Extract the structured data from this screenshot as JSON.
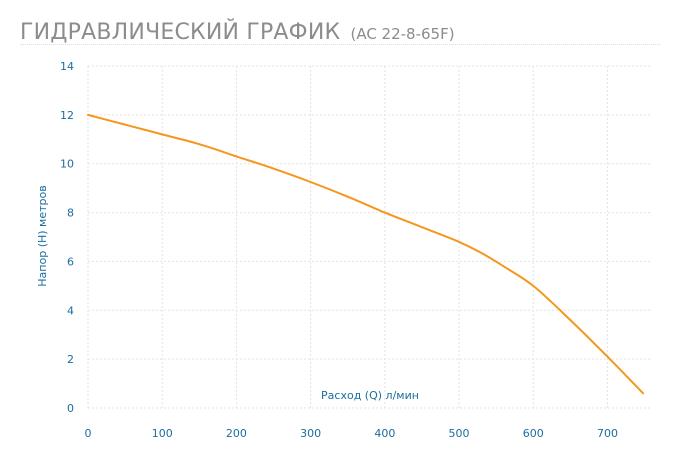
{
  "header": {
    "title": "ГИДРАВЛИЧЕСКИЙ ГРАФИК",
    "model": "(AC 22-8-65F)"
  },
  "colors": {
    "curve": "#f5961e",
    "axis_text": "#1a6e9e",
    "grid": "#e3e3e3",
    "title": "#8c8c8c"
  },
  "chart_data": {
    "type": "line",
    "title": "ГИДРАВЛИЧЕСКИЙ ГРАФИК (AC 22-8-65F)",
    "xlabel": "Расход (Q) л/мин",
    "ylabel": "Напор (H) метров",
    "xlim": [
      0,
      760
    ],
    "ylim": [
      0,
      14
    ],
    "xticks": [
      0,
      100,
      200,
      300,
      400,
      500,
      600,
      700
    ],
    "yticks": [
      0,
      2,
      4,
      6,
      8,
      10,
      12,
      14
    ],
    "grid": true,
    "series": [
      {
        "values": [
          [
            0,
            12.0
          ],
          [
            50,
            11.6
          ],
          [
            100,
            11.2
          ],
          [
            150,
            10.8
          ],
          [
            200,
            10.3
          ],
          [
            250,
            9.8
          ],
          [
            300,
            9.25
          ],
          [
            350,
            8.65
          ],
          [
            400,
            8.0
          ],
          [
            450,
            7.4
          ],
          [
            500,
            6.8
          ],
          [
            530,
            6.35
          ],
          [
            560,
            5.8
          ],
          [
            600,
            5.0
          ],
          [
            650,
            3.6
          ],
          [
            700,
            2.1
          ],
          [
            748,
            0.6
          ]
        ]
      }
    ]
  }
}
